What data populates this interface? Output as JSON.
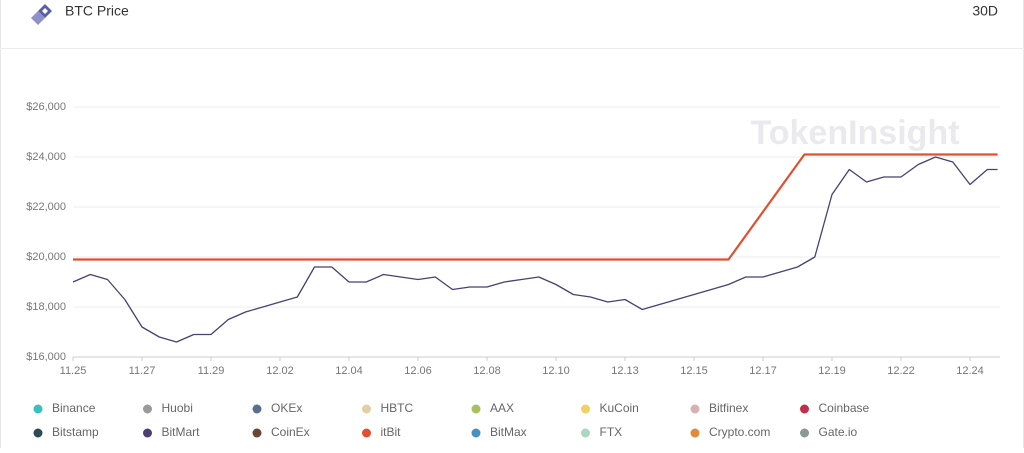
{
  "chart_data": {
    "type": "line",
    "title": "BTC Price",
    "range_button": "30D",
    "watermark": "TokenInsight",
    "xlim": [
      0,
      13.4
    ],
    "xticks": [
      {
        "value": 0,
        "label": "11.25"
      },
      {
        "value": 1,
        "label": "11.27"
      },
      {
        "value": 2,
        "label": "11.29"
      },
      {
        "value": 3,
        "label": "12.02"
      },
      {
        "value": 4,
        "label": "12.04"
      },
      {
        "value": 5,
        "label": "12.06"
      },
      {
        "value": 6,
        "label": "12.08"
      },
      {
        "value": 7,
        "label": "12.10"
      },
      {
        "value": 8,
        "label": "12.13"
      },
      {
        "value": 9,
        "label": "12.15"
      },
      {
        "value": 10,
        "label": "12.17"
      },
      {
        "value": 11,
        "label": "12.19"
      },
      {
        "value": 12,
        "label": "12.22"
      },
      {
        "value": 13,
        "label": "12.24"
      }
    ],
    "ylim": [
      16000,
      26000
    ],
    "yticks": [
      {
        "value": 16000,
        "label": "$16,000"
      },
      {
        "value": 18000,
        "label": "$18,000"
      },
      {
        "value": 20000,
        "label": "$20,000"
      },
      {
        "value": 22000,
        "label": "$22,000"
      },
      {
        "value": 24000,
        "label": "$24,000"
      },
      {
        "value": 26000,
        "label": "$26,000"
      }
    ],
    "grid": true,
    "series": [
      {
        "name": "Binance",
        "color": "#3bbfbf"
      },
      {
        "name": "Huobi",
        "color": "#9a9a9a"
      },
      {
        "name": "OKEx",
        "color": "#5a6f8c"
      },
      {
        "name": "HBTC",
        "color": "#e3cfa6"
      },
      {
        "name": "AAX",
        "color": "#a8c060"
      },
      {
        "name": "KuCoin",
        "color": "#f0d060"
      },
      {
        "name": "Bitfinex",
        "color": "#d8b0b0"
      },
      {
        "name": "Coinbase",
        "color": "#c0304a"
      },
      {
        "name": "Bitstamp",
        "color": "#2d4a55"
      },
      {
        "name": "BitMart",
        "color": "#4b3f73",
        "x": [
          0,
          0.25,
          0.5,
          0.75,
          1,
          1.25,
          1.5,
          1.75,
          2,
          2.25,
          2.5,
          2.75,
          3,
          3.25,
          3.5,
          3.75,
          4,
          4.25,
          4.5,
          4.75,
          5,
          5.25,
          5.5,
          5.75,
          6,
          6.25,
          6.5,
          6.75,
          7,
          7.25,
          7.5,
          7.75,
          8,
          8.25,
          8.5,
          8.75,
          9,
          9.25,
          9.5,
          9.75,
          10,
          10.25,
          10.5,
          10.75,
          11,
          11.25,
          11.5,
          11.75,
          12,
          12.25,
          12.5,
          12.75,
          13,
          13.25,
          13.4
        ],
        "values": [
          19000,
          19300,
          19100,
          18300,
          17200,
          16800,
          16600,
          16900,
          16900,
          17500,
          17800,
          18000,
          18200,
          18400,
          19600,
          19600,
          19000,
          19000,
          19300,
          19200,
          19100,
          19200,
          18700,
          18800,
          18800,
          19000,
          19100,
          19200,
          18900,
          18500,
          18400,
          18200,
          18300,
          17900,
          18100,
          18300,
          18500,
          18700,
          18900,
          19200,
          19200,
          19400,
          19600,
          20000,
          22500,
          23500,
          23000,
          23200,
          23200,
          23700,
          24000,
          23800,
          22900,
          23500,
          23500
        ]
      },
      {
        "name": "CoinEx",
        "color": "#6b4535"
      },
      {
        "name": "itBit",
        "color": "#e05030",
        "x": [
          0,
          9.5,
          10.6,
          13.4
        ],
        "values": [
          19900,
          19900,
          24100,
          24100
        ]
      },
      {
        "name": "BitMax",
        "color": "#4a90c0"
      },
      {
        "name": "FTX",
        "color": "#a8d8c0"
      },
      {
        "name": "Crypto.com",
        "color": "#e08a3a"
      },
      {
        "name": "Gate.io",
        "color": "#8a9a90"
      }
    ]
  }
}
